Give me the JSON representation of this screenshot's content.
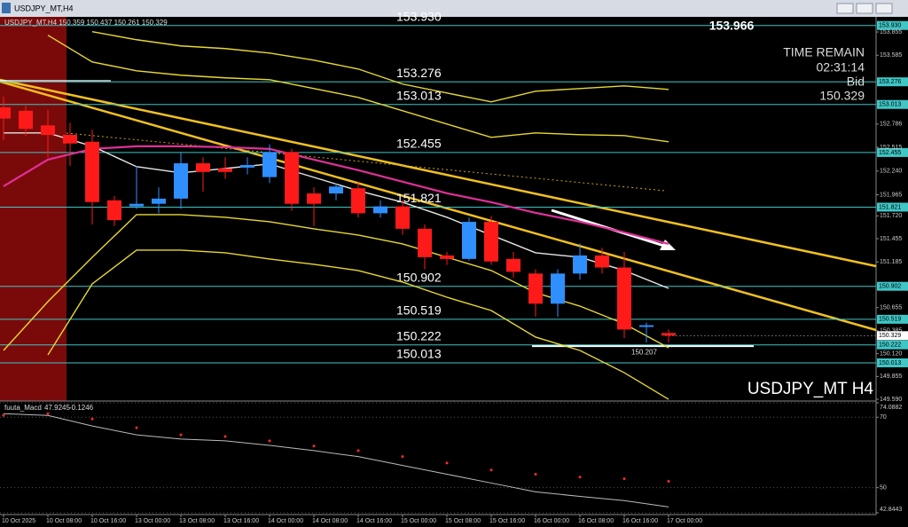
{
  "chart_data": [
    {
      "type": "candlestick",
      "title": "USDJPY_MT,H4",
      "subtitle": "USDJPY_MT,H4 150.359 150.437 150.261 150.329",
      "watermark": "USDJPY_MT H4",
      "categories": [
        "10 Oct 2025",
        null,
        "10 Oct 08:00",
        null,
        "10 Oct 16:00",
        null,
        "13 Oct 00:00",
        null,
        "13 Oct 08:00",
        null,
        "13 Oct 16:00",
        null,
        "14 Oct 00:00",
        null,
        "14 Oct 08:00",
        null,
        "14 Oct 16:00",
        null,
        "15 Oct 00:00",
        null,
        "15 Oct 08:00",
        null,
        "15 Oct 16:00",
        null,
        "16 Oct 00:00",
        null,
        "16 Oct 08:00",
        null,
        "16 Oct 16:00",
        null,
        "17 Oct 00:00"
      ],
      "open": [
        152.98,
        152.94,
        152.77,
        152.66,
        152.58,
        151.9,
        151.83,
        151.86,
        151.92,
        152.33,
        152.27,
        152.28,
        152.17,
        152.46,
        151.98,
        151.98,
        152.04,
        151.75,
        151.83,
        151.57,
        151.26,
        151.22,
        151.65,
        151.22,
        151.05,
        150.7,
        151.05,
        151.26,
        151.12,
        150.43,
        150.36
      ],
      "high": [
        153.1,
        153.0,
        152.95,
        152.8,
        152.72,
        151.95,
        152.3,
        152.05,
        152.45,
        152.4,
        152.4,
        152.4,
        152.55,
        152.5,
        152.05,
        152.1,
        152.12,
        151.9,
        151.9,
        151.62,
        151.3,
        151.7,
        151.72,
        151.3,
        151.1,
        151.1,
        151.4,
        151.35,
        151.3,
        150.48,
        150.4
      ],
      "low": [
        152.6,
        152.65,
        152.4,
        152.3,
        151.62,
        151.6,
        151.8,
        151.75,
        151.8,
        152.0,
        152.15,
        152.2,
        152.1,
        151.78,
        151.6,
        151.9,
        151.7,
        151.7,
        151.5,
        151.1,
        151.15,
        151.2,
        151.15,
        151.0,
        150.55,
        150.55,
        150.98,
        151.05,
        150.3,
        150.25,
        150.25
      ],
      "close": [
        152.85,
        152.73,
        152.66,
        152.56,
        151.88,
        151.67,
        151.86,
        151.92,
        152.33,
        152.23,
        152.23,
        152.31,
        152.46,
        151.86,
        151.86,
        152.06,
        151.75,
        151.83,
        151.57,
        151.24,
        151.22,
        151.65,
        151.19,
        151.07,
        150.7,
        151.05,
        151.26,
        151.12,
        150.4,
        150.45,
        150.33
      ],
      "up_color": "#2f8fff",
      "down_color": "#ff1a1a",
      "ylim": [
        149.57,
        154.02
      ],
      "yticks": [
        {
          "value": 153.855,
          "label": "153.855"
        },
        {
          "value": 153.585,
          "label": "153.585"
        },
        {
          "value": 152.786,
          "label": "152.786"
        },
        {
          "value": 152.515,
          "label": "152.515"
        },
        {
          "value": 152.24,
          "label": "152.240"
        },
        {
          "value": 151.965,
          "label": "151.965"
        },
        {
          "value": 151.72,
          "label": "151.720"
        },
        {
          "value": 151.455,
          "label": "151.455"
        },
        {
          "value": 151.185,
          "label": "151.185"
        },
        {
          "value": 150.655,
          "label": "150.655"
        },
        {
          "value": 150.385,
          "label": "150.385"
        },
        {
          "value": 150.12,
          "label": "150.120"
        },
        {
          "value": 149.855,
          "label": "149.855"
        },
        {
          "value": 149.59,
          "label": "149.590"
        }
      ],
      "levels": [
        {
          "value": 153.93,
          "label": "153.930"
        },
        153.276,
        153.013,
        152.455,
        151.821,
        150.902,
        150.519,
        150.222,
        150.013
      ],
      "level_color": "#3fc6c6",
      "current_price": 150.329,
      "session_high": 153.966,
      "session_low_mark": 150.207,
      "timer_label": "TIME REMAIN",
      "timer": "02:31:14",
      "bid_label": "Bid",
      "bid": 150.329,
      "overlay_x": [
        0,
        2,
        4,
        6,
        8,
        10,
        12,
        14,
        16,
        18,
        20,
        22,
        24,
        26,
        28,
        30
      ],
      "overlays": [
        {
          "color": "#e8d830",
          "values": [
            null,
            null,
            153.858,
            153.765,
            153.693,
            153.662,
            153.61,
            153.528,
            153.425,
            153.25,
            153.146,
            153.043,
            153.167,
            153.198,
            153.229,
            153.188
          ]
        },
        {
          "color": "#e8d830",
          "values": [
            null,
            153.817,
            153.507,
            153.404,
            153.353,
            153.322,
            153.301,
            153.198,
            153.095,
            152.94,
            152.786,
            152.631,
            152.683,
            152.662,
            152.652,
            152.58
          ]
        },
        {
          "color": "#e8d830",
          "values": [
            150.157,
            150.724,
            151.239,
            151.734,
            151.734,
            151.703,
            151.652,
            151.569,
            151.497,
            151.394,
            151.239,
            151.085,
            150.827,
            150.672,
            150.466,
            150.188
          ]
        },
        {
          "color": "#e8d830",
          "values": [
            null,
            150.105,
            150.93,
            151.322,
            151.322,
            151.291,
            151.219,
            151.157,
            151.085,
            150.951,
            150.775,
            150.621,
            150.312,
            150.157,
            149.899,
            149.59
          ]
        },
        {
          "color": "#e0309a",
          "values": [
            152.064,
            152.373,
            152.497,
            152.528,
            152.528,
            152.518,
            152.497,
            152.373,
            152.25,
            152.116,
            151.982,
            151.878,
            151.755,
            151.652,
            151.528,
            151.394
          ]
        },
        {
          "color": "#e6e6e6",
          "values": [
            152.683,
            152.683,
            152.528,
            152.291,
            152.219,
            152.27,
            152.322,
            152.167,
            152.012,
            151.878,
            151.703,
            151.497,
            151.291,
            151.239,
            151.085,
            150.878
          ]
        }
      ]
    },
    {
      "type": "line",
      "title": "fuuta_Macd",
      "readout": [
        47.9245,
        -0.1246
      ],
      "x": [
        0,
        2,
        4,
        6,
        8,
        10,
        12,
        14,
        16,
        18,
        20,
        22,
        24,
        26,
        28,
        30
      ],
      "series": [
        {
          "color": "#bbbbbb",
          "values": [
            71,
            70.5,
            67.5,
            65,
            63.8,
            63.3,
            62,
            60.5,
            58.8,
            56.3,
            53.8,
            51.3,
            48.8,
            47.5,
            46.3,
            44.5
          ]
        },
        {
          "color": "#ff2a2a",
          "marker": "dot",
          "values": [
            70.5,
            71,
            69.5,
            67,
            65,
            64.5,
            63.3,
            61.8,
            60.5,
            58.8,
            57,
            55,
            53.8,
            53,
            52.5,
            51.8
          ]
        }
      ],
      "ylim": [
        42.8443,
        74.0882
      ],
      "yticks": [
        42.8443,
        50,
        70,
        74.0882
      ]
    }
  ]
}
